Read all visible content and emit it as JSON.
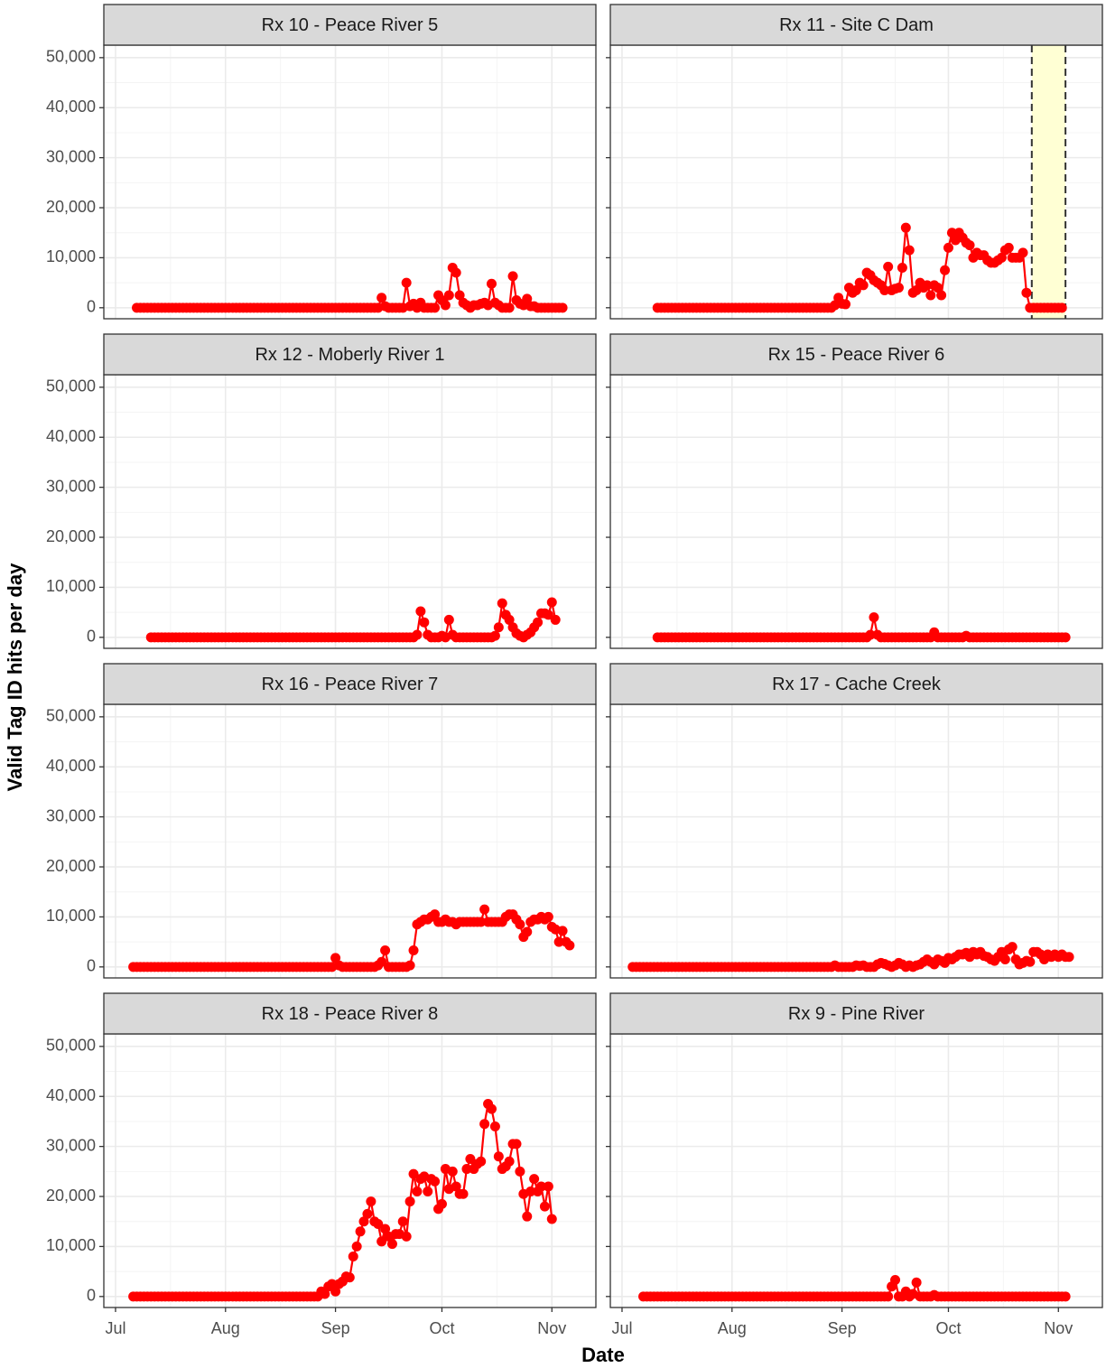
{
  "chart_data": {
    "type": "line",
    "xlabel": "Date",
    "ylabel": "Valid Tag ID hits per day",
    "color": "#ff0000",
    "grid": true,
    "x": [
      2,
      3,
      4,
      5,
      6,
      7,
      8,
      9,
      10,
      11,
      12,
      13,
      14,
      15,
      16,
      17,
      18,
      19,
      20,
      21,
      22,
      23,
      24,
      25,
      26,
      27,
      28,
      29,
      30,
      31,
      32,
      33,
      34,
      35,
      36,
      37,
      38,
      39,
      40,
      41,
      42,
      43,
      44,
      45,
      46,
      47,
      48,
      49,
      50,
      51,
      52,
      53,
      54,
      55,
      56,
      57,
      58,
      59,
      60,
      61,
      62,
      63,
      64,
      65,
      66,
      67,
      68,
      69,
      70,
      71,
      72,
      73,
      74,
      75,
      76,
      77,
      78,
      79,
      80,
      81,
      82,
      83,
      84,
      85,
      86,
      87,
      88,
      89,
      90,
      91,
      92,
      93,
      94,
      95,
      96,
      97,
      98,
      99,
      100,
      101,
      102,
      103,
      104,
      105,
      106,
      107,
      108,
      109,
      110,
      111,
      112,
      113,
      114,
      115,
      116,
      117,
      118,
      119,
      120,
      121,
      122,
      123,
      124,
      125,
      126,
      127,
      128
    ],
    "xlim": [
      -3.3,
      135.4
    ],
    "xticks": [
      {
        "value": 0,
        "label": "Jul"
      },
      {
        "value": 31,
        "label": "Aug"
      },
      {
        "value": 62,
        "label": "Sep"
      },
      {
        "value": 92,
        "label": "Oct"
      },
      {
        "value": 123,
        "label": "Nov"
      }
    ],
    "ylim": [
      -2200,
      52500
    ],
    "yticks": [
      0,
      {
        "value": 10000,
        "label": "10,000"
      },
      {
        "value": 20000,
        "label": "20,000"
      },
      {
        "value": 30000,
        "label": "30,000"
      },
      {
        "value": 40000,
        "label": "40,000"
      },
      {
        "value": 50000,
        "label": "50,000"
      }
    ],
    "panels": [
      {
        "title": "Rx 10 - Peace River 5",
        "values": [
          null,
          null,
          null,
          null,
          0,
          0,
          0,
          0,
          0,
          0,
          0,
          0,
          0,
          0,
          0,
          0,
          0,
          0,
          0,
          0,
          0,
          0,
          0,
          0,
          0,
          0,
          0,
          0,
          0,
          0,
          0,
          0,
          0,
          0,
          0,
          0,
          0,
          0,
          0,
          0,
          0,
          0,
          0,
          0,
          0,
          0,
          0,
          0,
          0,
          0,
          0,
          0,
          0,
          0,
          0,
          0,
          0,
          0,
          0,
          0,
          0,
          0,
          0,
          0,
          0,
          0,
          0,
          0,
          0,
          0,
          0,
          0,
          0,
          2000,
          300,
          0,
          0,
          0,
          0,
          0,
          5000,
          300,
          800,
          0,
          1000,
          0,
          0,
          0,
          0,
          2500,
          1500,
          500,
          2500,
          8000,
          7000,
          2500,
          1000,
          500,
          0,
          500,
          500,
          800,
          1000,
          500,
          4800,
          1000,
          500,
          0,
          0,
          0,
          6300,
          1500,
          800,
          500,
          1800,
          300,
          300,
          0,
          0,
          0,
          0,
          0,
          0,
          0,
          0,
          null,
          null
        ]
      },
      {
        "title": "Rx 11 - Site C Dam",
        "highlight_x": [
          115.5,
          125
        ],
        "highlight_color": "#ffffd4",
        "values": [
          null,
          null,
          null,
          null,
          null,
          null,
          null,
          null,
          0,
          0,
          0,
          0,
          0,
          0,
          0,
          0,
          0,
          0,
          0,
          0,
          0,
          0,
          0,
          0,
          0,
          0,
          0,
          0,
          0,
          0,
          0,
          0,
          0,
          0,
          0,
          0,
          0,
          0,
          0,
          0,
          0,
          0,
          0,
          0,
          0,
          0,
          0,
          0,
          0,
          0,
          0,
          0,
          0,
          0,
          0,
          0,
          0,
          0,
          500,
          2000,
          800,
          700,
          4000,
          3000,
          3500,
          5000,
          4500,
          7000,
          6500,
          5500,
          5000,
          4500,
          3500,
          8200,
          3500,
          3800,
          4000,
          8000,
          16000,
          11500,
          3000,
          3500,
          5000,
          4000,
          4500,
          2500,
          4500,
          4000,
          2500,
          7500,
          12000,
          15000,
          13500,
          15000,
          14000,
          13000,
          12500,
          10000,
          11000,
          10500,
          10500,
          9500,
          9000,
          9000,
          9500,
          10000,
          11500,
          12000,
          10000,
          10000,
          10000,
          11000,
          3000,
          0,
          0,
          0,
          0,
          0,
          0,
          0,
          0,
          0,
          0,
          null,
          null,
          null,
          null
        ]
      },
      {
        "title": "Rx 12 - Moberly River 1",
        "values": [
          null,
          null,
          null,
          null,
          null,
          null,
          null,
          null,
          0,
          0,
          0,
          0,
          0,
          0,
          0,
          0,
          0,
          0,
          0,
          0,
          0,
          0,
          0,
          0,
          0,
          0,
          0,
          0,
          0,
          0,
          0,
          0,
          0,
          0,
          0,
          0,
          0,
          0,
          0,
          0,
          0,
          0,
          0,
          0,
          0,
          0,
          0,
          0,
          0,
          0,
          0,
          0,
          0,
          0,
          0,
          0,
          0,
          0,
          0,
          0,
          0,
          0,
          0,
          0,
          0,
          0,
          0,
          0,
          0,
          0,
          0,
          0,
          0,
          0,
          0,
          0,
          0,
          0,
          0,
          0,
          0,
          0,
          0,
          500,
          5200,
          3000,
          500,
          0,
          0,
          0,
          300,
          0,
          3500,
          500,
          0,
          0,
          0,
          0,
          0,
          0,
          0,
          0,
          0,
          0,
          0,
          300,
          2000,
          6800,
          4500,
          3500,
          2000,
          800,
          300,
          0,
          500,
          1000,
          2000,
          3000,
          4800,
          4800,
          4500,
          7000,
          3500,
          null,
          null,
          null,
          null
        ]
      },
      {
        "title": "Rx 15 - Peace River 6",
        "values": [
          null,
          null,
          null,
          null,
          null,
          null,
          null,
          null,
          0,
          0,
          0,
          0,
          0,
          0,
          0,
          0,
          0,
          0,
          0,
          0,
          0,
          0,
          0,
          0,
          0,
          0,
          0,
          0,
          0,
          0,
          0,
          0,
          0,
          0,
          0,
          0,
          0,
          0,
          0,
          0,
          0,
          0,
          0,
          0,
          0,
          0,
          0,
          0,
          0,
          0,
          0,
          0,
          0,
          0,
          0,
          0,
          0,
          0,
          0,
          0,
          0,
          0,
          0,
          0,
          0,
          0,
          0,
          0,
          500,
          4000,
          500,
          0,
          0,
          0,
          0,
          0,
          0,
          0,
          0,
          0,
          0,
          0,
          0,
          0,
          0,
          0,
          1000,
          0,
          0,
          0,
          0,
          0,
          0,
          0,
          0,
          300,
          0,
          0,
          0,
          0,
          0,
          0,
          0,
          0,
          0,
          0,
          0,
          0,
          0,
          0,
          0,
          0,
          0,
          0,
          0,
          0,
          0,
          0,
          0,
          0,
          0,
          0,
          0,
          0,
          null,
          null,
          null
        ]
      },
      {
        "title": "Rx 16 - Peace River 7",
        "values": [
          null,
          null,
          null,
          0,
          0,
          0,
          0,
          0,
          0,
          0,
          0,
          0,
          0,
          0,
          0,
          0,
          0,
          0,
          0,
          0,
          0,
          0,
          0,
          0,
          0,
          0,
          0,
          0,
          0,
          0,
          0,
          0,
          0,
          0,
          0,
          0,
          0,
          0,
          0,
          0,
          0,
          0,
          0,
          0,
          0,
          0,
          0,
          0,
          0,
          0,
          0,
          0,
          0,
          0,
          0,
          0,
          0,
          0,
          0,
          0,
          1800,
          300,
          0,
          0,
          0,
          0,
          0,
          0,
          0,
          0,
          0,
          0,
          300,
          1000,
          3300,
          0,
          0,
          0,
          0,
          0,
          0,
          300,
          3300,
          8500,
          9000,
          9500,
          9500,
          10000,
          10500,
          9000,
          9000,
          9500,
          9000,
          9000,
          8500,
          9000,
          9000,
          9000,
          9000,
          9000,
          9000,
          9000,
          11500,
          9000,
          9000,
          9000,
          9000,
          9000,
          10000,
          10500,
          10500,
          9500,
          8500,
          6000,
          7000,
          9000,
          9500,
          9500,
          10000,
          9500,
          10000,
          8000,
          7500,
          5000,
          7200,
          5000,
          4300
        ]
      },
      {
        "title": "Rx 17 - Cache Creek",
        "values": [
          null,
          0,
          0,
          0,
          0,
          0,
          0,
          0,
          0,
          0,
          0,
          0,
          0,
          0,
          0,
          0,
          0,
          0,
          0,
          0,
          0,
          0,
          0,
          0,
          0,
          0,
          0,
          0,
          0,
          0,
          0,
          0,
          0,
          0,
          0,
          0,
          0,
          0,
          0,
          0,
          0,
          0,
          0,
          0,
          0,
          0,
          0,
          0,
          0,
          0,
          0,
          0,
          0,
          0,
          0,
          0,
          0,
          0,
          300,
          0,
          0,
          0,
          0,
          0,
          300,
          200,
          300,
          0,
          0,
          0,
          500,
          800,
          600,
          300,
          0,
          300,
          800,
          500,
          0,
          300,
          0,
          300,
          500,
          1000,
          1500,
          1000,
          500,
          1500,
          1200,
          800,
          1800,
          1500,
          2000,
          2500,
          2500,
          2800,
          2000,
          3000,
          2500,
          3000,
          2200,
          2000,
          1500,
          1200,
          2000,
          3000,
          1500,
          3500,
          4000,
          1500,
          500,
          800,
          1200,
          1000,
          3000,
          3000,
          2500,
          1500,
          2500,
          2000,
          2500,
          2000,
          2500,
          2000,
          2000,
          null,
          null
        ]
      },
      {
        "title": "Rx 18 - Peace River 8",
        "values": [
          null,
          null,
          null,
          0,
          0,
          0,
          0,
          0,
          0,
          0,
          0,
          0,
          0,
          0,
          0,
          0,
          0,
          0,
          0,
          0,
          0,
          0,
          0,
          0,
          0,
          0,
          0,
          0,
          0,
          0,
          0,
          0,
          0,
          0,
          0,
          0,
          0,
          0,
          0,
          0,
          0,
          0,
          0,
          0,
          0,
          0,
          0,
          0,
          0,
          0,
          0,
          0,
          0,
          0,
          0,
          0,
          1000,
          500,
          2000,
          2500,
          1000,
          2500,
          3000,
          4000,
          3800,
          8000,
          10000,
          13000,
          15000,
          16500,
          19000,
          15000,
          14500,
          11000,
          13500,
          12000,
          10500,
          12500,
          12500,
          15000,
          12000,
          19000,
          24500,
          21000,
          23500,
          24000,
          21000,
          23500,
          23000,
          17500,
          18500,
          25500,
          21500,
          25000,
          22000,
          20500,
          20500,
          25500,
          27500,
          25500,
          26500,
          27000,
          34500,
          38500,
          37500,
          34000,
          28000,
          25500,
          26000,
          27000,
          30500,
          30500,
          25000,
          20500,
          16000,
          21000,
          23500,
          21000,
          22000,
          18000,
          22000,
          15500,
          null,
          null,
          null,
          null,
          null
        ]
      },
      {
        "title": "Rx 9 - Pine River",
        "values": [
          null,
          null,
          null,
          null,
          0,
          0,
          0,
          0,
          0,
          0,
          0,
          0,
          0,
          0,
          0,
          0,
          0,
          0,
          0,
          0,
          0,
          0,
          0,
          0,
          0,
          0,
          0,
          0,
          0,
          0,
          0,
          0,
          0,
          0,
          0,
          0,
          0,
          0,
          0,
          0,
          0,
          0,
          0,
          0,
          0,
          0,
          0,
          0,
          0,
          0,
          0,
          0,
          0,
          0,
          0,
          0,
          0,
          0,
          0,
          0,
          0,
          0,
          0,
          0,
          0,
          0,
          0,
          0,
          0,
          0,
          0,
          0,
          0,
          0,
          2000,
          3300,
          0,
          0,
          1000,
          0,
          500,
          2800,
          0,
          0,
          0,
          0,
          300,
          0,
          0,
          0,
          0,
          0,
          0,
          0,
          0,
          0,
          0,
          0,
          0,
          0,
          0,
          0,
          0,
          0,
          0,
          0,
          0,
          0,
          0,
          0,
          0,
          0,
          0,
          0,
          0,
          0,
          0,
          0,
          0,
          0,
          0,
          0,
          0,
          0,
          null,
          null,
          null
        ]
      }
    ]
  }
}
